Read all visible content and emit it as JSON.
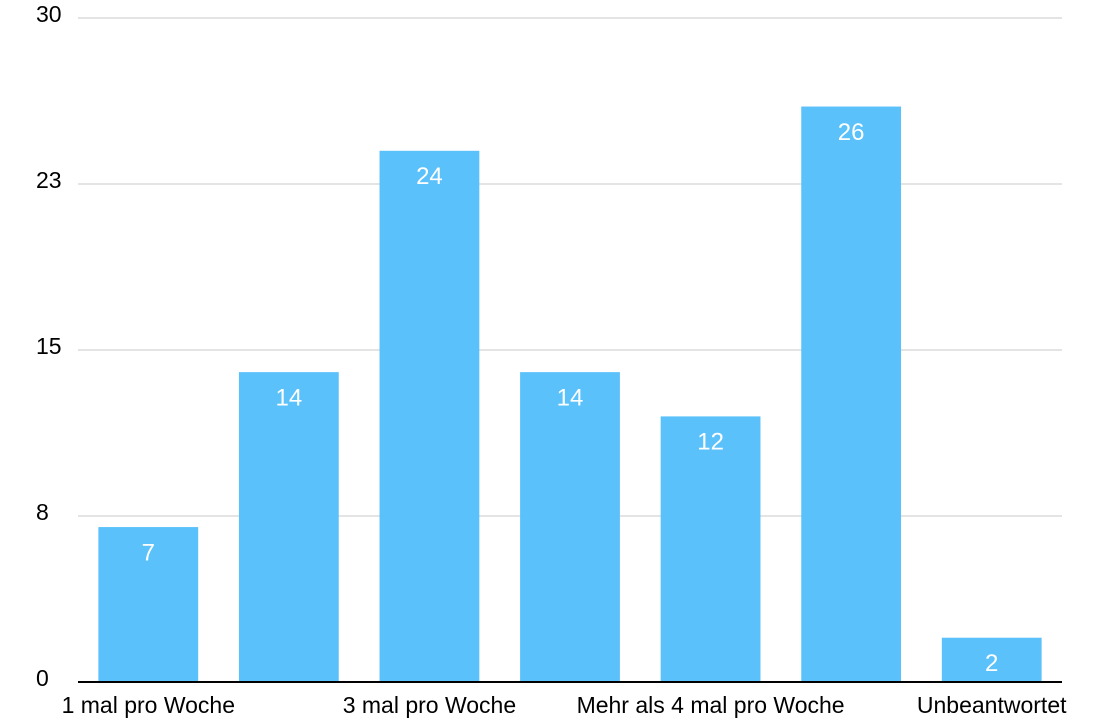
{
  "chart_data": {
    "type": "bar",
    "categories": [
      "1 mal pro Woche",
      null,
      "3 mal pro Woche",
      null,
      "Mehr als 4 mal pro Woche",
      null,
      "Unbeantwortet"
    ],
    "values": [
      7,
      14,
      24,
      14,
      12,
      26,
      2
    ],
    "color": "#5ac1fb",
    "ylim": [
      0,
      30
    ],
    "yticks": [
      0,
      {
        "value": 7.5,
        "label": "8"
      },
      15,
      {
        "value": 22.5,
        "label": "23"
      },
      30
    ],
    "grid": true
  }
}
